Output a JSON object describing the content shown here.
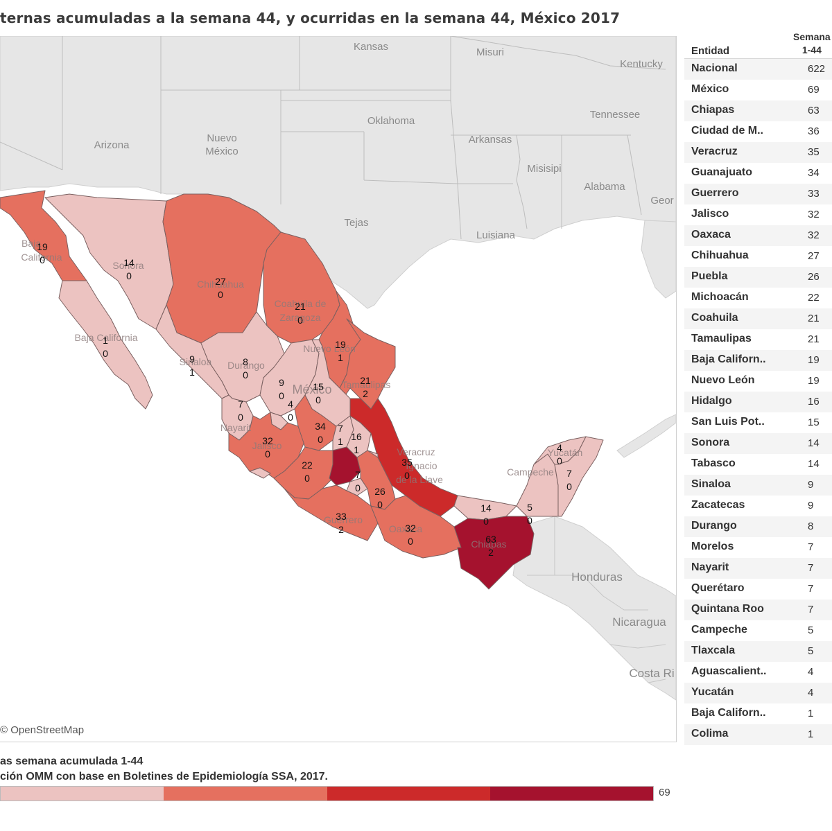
{
  "title": "ternas acumuladas a la semana 44, y ocurridas en la semana 44, México 2017",
  "attribution": "© OpenStreetMap",
  "table": {
    "col_entity": "Entidad",
    "col_week_line1": "Semana",
    "col_week_line2": "1-44",
    "rows": [
      {
        "name": "Nacional",
        "value": "622"
      },
      {
        "name": "México",
        "value": "69"
      },
      {
        "name": "Chiapas",
        "value": "63"
      },
      {
        "name": "Ciudad de M..",
        "value": "36"
      },
      {
        "name": "Veracruz",
        "value": "35"
      },
      {
        "name": "Guanajuato",
        "value": "34"
      },
      {
        "name": "Guerrero",
        "value": "33"
      },
      {
        "name": "Jalisco",
        "value": "32"
      },
      {
        "name": "Oaxaca",
        "value": "32"
      },
      {
        "name": "Chihuahua",
        "value": "27"
      },
      {
        "name": "Puebla",
        "value": "26"
      },
      {
        "name": "Michoacán",
        "value": "22"
      },
      {
        "name": "Coahuila",
        "value": "21"
      },
      {
        "name": "Tamaulipas",
        "value": "21"
      },
      {
        "name": "Baja Californ..",
        "value": "19"
      },
      {
        "name": "Nuevo León",
        "value": "19"
      },
      {
        "name": "Hidalgo",
        "value": "16"
      },
      {
        "name": "San Luis Pot..",
        "value": "15"
      },
      {
        "name": "Sonora",
        "value": "14"
      },
      {
        "name": "Tabasco",
        "value": "14"
      },
      {
        "name": "Sinaloa",
        "value": "9"
      },
      {
        "name": "Zacatecas",
        "value": "9"
      },
      {
        "name": "Durango",
        "value": "8"
      },
      {
        "name": "Morelos",
        "value": "7"
      },
      {
        "name": "Nayarit",
        "value": "7"
      },
      {
        "name": "Querétaro",
        "value": "7"
      },
      {
        "name": "Quintana Roo",
        "value": "7"
      },
      {
        "name": "Campeche",
        "value": "5"
      },
      {
        "name": "Tlaxcala",
        "value": "5"
      },
      {
        "name": "Aguascalient..",
        "value": "4"
      },
      {
        "name": "Yucatán",
        "value": "4"
      },
      {
        "name": "Baja Californ..",
        "value": "1"
      },
      {
        "name": "Colima",
        "value": "1"
      }
    ]
  },
  "footer": {
    "line1": "as semana acumulada 1-44",
    "line2": "ción OMM con base en Boletines de Epidemiología SSA, 2017."
  },
  "legend": {
    "max_label": "69",
    "colors": [
      "#ecc3c1",
      "#e5705f",
      "#cc2a2a",
      "#a5122e"
    ]
  },
  "map_labels": {
    "us": [
      "Kansas",
      "Misuri",
      "Kentucky",
      "Oklahoma",
      "Tennessee",
      "Arizona",
      "Nuevo",
      "México",
      "Arkansas",
      "Misisipi",
      "Alabama",
      "Geor",
      "Tejas",
      "Luisiana"
    ],
    "central_america": [
      "Honduras",
      "Nicaragua",
      "Costa Ri"
    ],
    "mexico_faint": [
      "Baja",
      "California",
      "Sonora",
      "Chihuahua",
      "Coahuila de",
      "Zaragoza",
      "Baja California",
      "Sinaloa",
      "Durango",
      "Nuevo León",
      "Tamaulipas",
      "México",
      "Nayarit",
      "Jalisco",
      "Veracruz",
      "Ignacio",
      "de la Llave",
      "Guerrero",
      "Oaxaca",
      "Chiapas",
      "Yucatán",
      "Campeche"
    ]
  },
  "state_values": [
    {
      "id": "baja-california",
      "total": "19",
      "week": "0"
    },
    {
      "id": "sonora",
      "total": "14",
      "week": "0"
    },
    {
      "id": "chihuahua",
      "total": "27",
      "week": "0"
    },
    {
      "id": "coahuila",
      "total": "21",
      "week": "0"
    },
    {
      "id": "baja-california-sur",
      "total": "1",
      "week": "0"
    },
    {
      "id": "nuevo-leon",
      "total": "19",
      "week": "1"
    },
    {
      "id": "sinaloa",
      "total": "9",
      "week": "1"
    },
    {
      "id": "durango",
      "total": "8",
      "week": "0"
    },
    {
      "id": "tamaulipas",
      "total": "21",
      "week": "2"
    },
    {
      "id": "zacatecas",
      "total": "9",
      "week": "0"
    },
    {
      "id": "san-luis-potosi",
      "total": "15",
      "week": "0"
    },
    {
      "id": "nayarit",
      "total": "7",
      "week": "0"
    },
    {
      "id": "aguascalientes",
      "total": "4",
      "week": "0"
    },
    {
      "id": "guanajuato",
      "total": "34",
      "week": "0"
    },
    {
      "id": "queretaro",
      "total": "7",
      "week": "1"
    },
    {
      "id": "hidalgo",
      "total": "16",
      "week": "1"
    },
    {
      "id": "jalisco",
      "total": "32",
      "week": "0"
    },
    {
      "id": "veracruz",
      "total": "35",
      "week": "0"
    },
    {
      "id": "michoacan",
      "total": "22",
      "week": "0"
    },
    {
      "id": "morelos",
      "total": "7",
      "week": "0"
    },
    {
      "id": "puebla",
      "total": "26",
      "week": "0"
    },
    {
      "id": "guerrero",
      "total": "33",
      "week": "2"
    },
    {
      "id": "oaxaca",
      "total": "32",
      "week": "0"
    },
    {
      "id": "tabasco",
      "total": "14",
      "week": "0"
    },
    {
      "id": "chiapas",
      "total": "63",
      "week": "2"
    },
    {
      "id": "campeche",
      "total": "5",
      "week": "0"
    },
    {
      "id": "yucatan",
      "total": "4",
      "week": "0"
    },
    {
      "id": "quintana-roo",
      "total": "7",
      "week": "0"
    }
  ]
}
